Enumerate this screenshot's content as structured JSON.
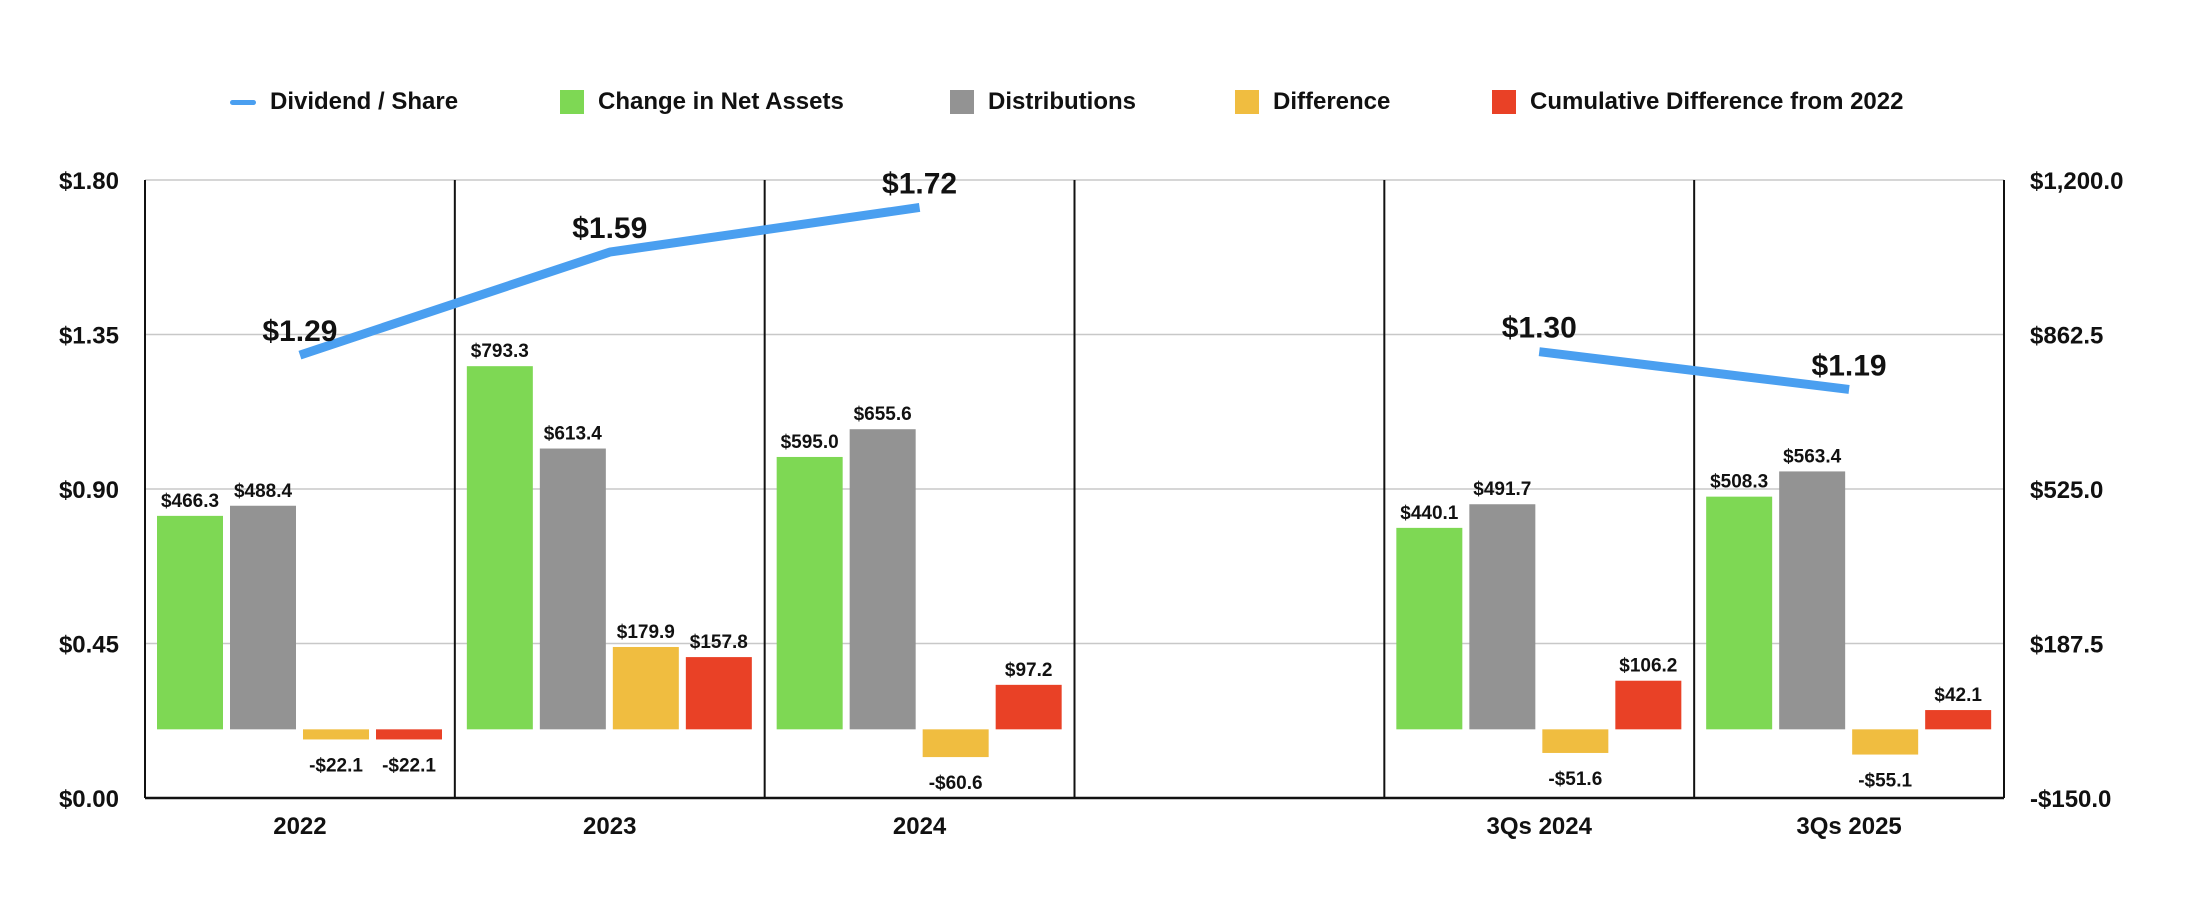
{
  "chart_data": {
    "type": "bar",
    "categories": [
      "2022",
      "2023",
      "2024",
      "",
      "3Qs 2024",
      "3Qs 2025"
    ],
    "series": [
      {
        "name": "Dividend / Share",
        "kind": "line",
        "axis": "left",
        "color": "#4a9ff0",
        "values": [
          1.29,
          1.59,
          1.72,
          null,
          1.3,
          1.19
        ],
        "labels": [
          "$1.29",
          "$1.59",
          "$1.72",
          "",
          "$1.30",
          "$1.19"
        ]
      },
      {
        "name": "Change in Net Assets",
        "kind": "bar",
        "axis": "right",
        "color": "#7ed854",
        "values": [
          466.3,
          793.3,
          595.0,
          null,
          440.1,
          508.3
        ],
        "labels": [
          "$466.3",
          "$793.3",
          "$595.0",
          "",
          "$440.1",
          "$508.3"
        ]
      },
      {
        "name": "Distributions",
        "kind": "bar",
        "axis": "right",
        "color": "#939393",
        "values": [
          488.4,
          613.4,
          655.6,
          null,
          491.7,
          563.4
        ],
        "labels": [
          "$488.4",
          "$613.4",
          "$655.6",
          "",
          "$491.7",
          "$563.4"
        ]
      },
      {
        "name": "Difference",
        "kind": "bar",
        "axis": "right",
        "color": "#f0bd40",
        "values": [
          -22.1,
          179.9,
          -60.6,
          null,
          -51.6,
          -55.1
        ],
        "labels": [
          "-$22.1",
          "$179.9",
          "-$60.6",
          "",
          "-$51.6",
          "-$55.1"
        ]
      },
      {
        "name": "Cumulative Difference from 2022",
        "kind": "bar",
        "axis": "right",
        "color": "#e94126",
        "values": [
          -22.1,
          157.8,
          97.2,
          null,
          106.2,
          42.1
        ],
        "labels": [
          "-$22.1",
          "$157.8",
          "$97.2",
          "",
          "$106.2",
          "$42.1"
        ]
      }
    ],
    "y_left": {
      "ylim": [
        0,
        1.8
      ],
      "ticks": [
        0,
        0.45,
        0.9,
        1.35,
        1.8
      ],
      "tick_labels": [
        "$0.00",
        "$0.45",
        "$0.90",
        "$1.35",
        "$1.80"
      ]
    },
    "y_right": {
      "ylim": [
        -150,
        1200
      ],
      "ticks": [
        -150,
        187.5,
        525,
        862.5,
        1200
      ],
      "tick_labels": [
        "-$150.0",
        "$187.5",
        "$525.0",
        "$862.5",
        "$1,200.0"
      ]
    },
    "grid": true,
    "legend_position": "top"
  }
}
